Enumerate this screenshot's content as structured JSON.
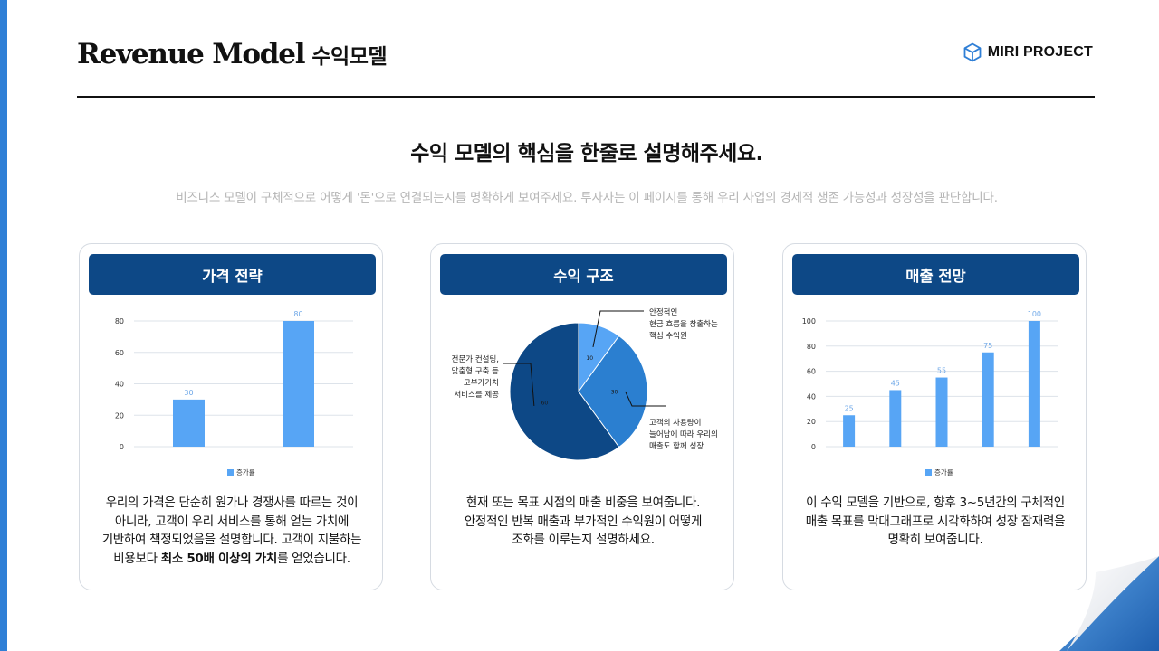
{
  "header": {
    "title_en": "Revenue Model",
    "title_ko": "수익모델",
    "brand": "MIRI PROJECT"
  },
  "headline": "수익 모델의 핵심을 한줄로 설명해주세요.",
  "subline": "비즈니스 모델이 구체적으로 어떻게 '돈'으로 연결되는지를 명확하게 보여주세요. 투자자는 이 페이지를 통해 우리 사업의 경제적 생존 가능성과 성장성을 판단합니다.",
  "colors": {
    "primary": "#0d4886",
    "accent": "#2f7fd6",
    "bar": "#57a5f5",
    "bar_label": "#6fa8e8"
  },
  "cards": [
    {
      "title": "가격 전략",
      "text_parts": [
        "우리의 가격은 단순히 원가나 경쟁사를 따르는 것이",
        "아니라, 고객이 우리 서비스를 통해 얻는 가치에",
        "기반하여 책정되었음을 설명합니다. 고객이 지불하는",
        "비용보다 ",
        "최소 50배 이상의 가치",
        "를 얻었습니다."
      ]
    },
    {
      "title": "수익 구조",
      "text_lines": [
        "현재 또는 목표 시점의 매출 비중을 보여줍니다.",
        "안정적인 반복 매출과 부가적인 수익원이 어떻게",
        "조화를 이루는지 설명하세요."
      ]
    },
    {
      "title": "매출 전망",
      "text_lines": [
        "이 수익 모델을 기반으로, 향후 3~5년간의 구체적인",
        "매출 목표를 막대그래프로 시각화하여 성장 잠재력을",
        "명확히 보여줍니다."
      ]
    }
  ],
  "chart_data": [
    {
      "type": "bar",
      "categories": [
        "",
        ""
      ],
      "series": [
        {
          "name": "증가률",
          "values": [
            30,
            80
          ]
        }
      ],
      "yticks": [
        0,
        20,
        40,
        60,
        80
      ],
      "ylim": [
        0,
        80
      ],
      "grid": true,
      "legend": "bottom-center"
    },
    {
      "type": "pie",
      "slices": [
        {
          "label": "안정적인 현금 흐름을 창출하는 핵심 수익원",
          "value": 10,
          "color": "#57a5f5",
          "tag": "10"
        },
        {
          "label": "고객의 사용량이 늘어남에 따라 우리의 매출도 함께 성장",
          "value": 30,
          "color": "#2b7fd0",
          "tag": "30"
        },
        {
          "label": "전문가 컨설팅, 맞춤형 구축 등 고부가가치 서비스를 제공",
          "value": 60,
          "color": "#0d4886",
          "tag": "60"
        }
      ],
      "annotations": [
        [
          "안정적인",
          "현금 흐름을 창출하는",
          "핵심 수익원"
        ],
        [
          "고객의 사용량이",
          "늘어남에 따라 우리의",
          "매출도 함께 성장"
        ],
        [
          "전문가 컨설팅,",
          "맞춤형 구축 등",
          "고부가가치",
          "서비스를 제공"
        ]
      ]
    },
    {
      "type": "bar",
      "categories": [
        "",
        "",
        "",
        "",
        ""
      ],
      "series": [
        {
          "name": "증가률",
          "values": [
            25,
            45,
            55,
            75,
            100
          ]
        }
      ],
      "yticks": [
        0,
        20,
        40,
        60,
        80,
        100
      ],
      "ylim": [
        0,
        100
      ],
      "grid": true,
      "legend": "bottom-center"
    }
  ]
}
